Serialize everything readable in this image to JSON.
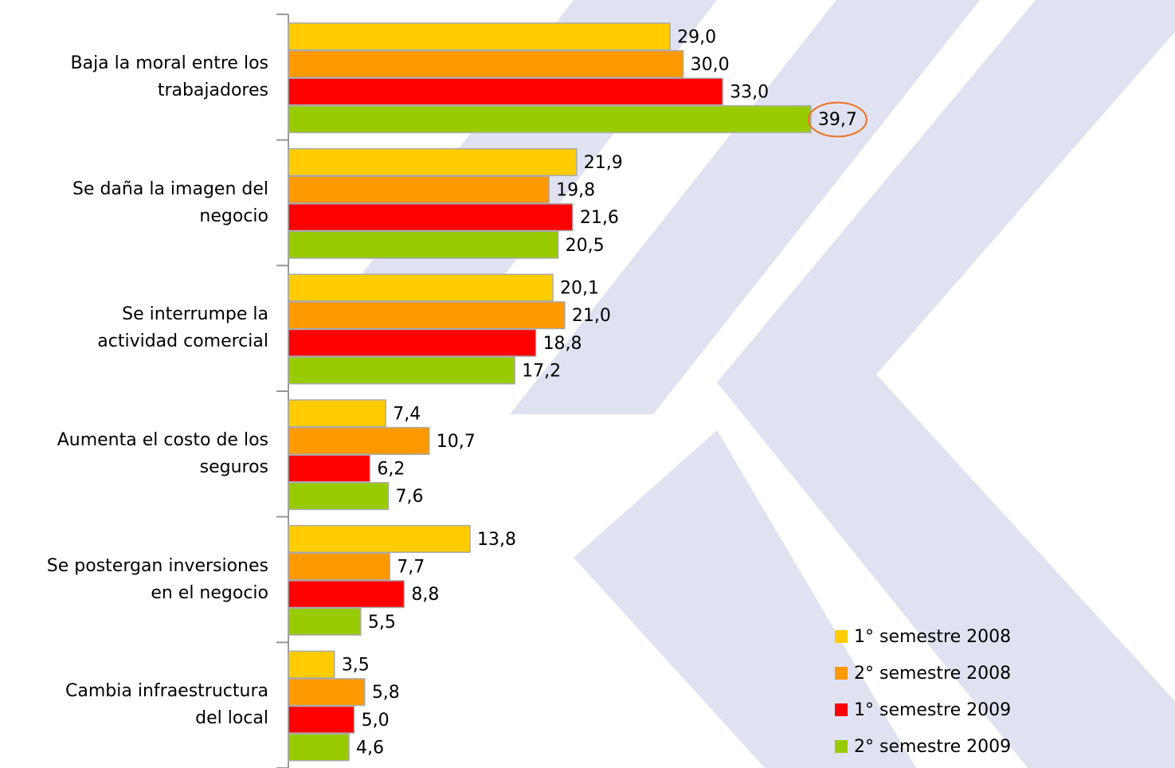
{
  "chart_data": {
    "type": "barh",
    "categories": [
      "Baja la moral entre los\ntrabajadores",
      "Se daña la imagen del\nnegocio",
      "Se interrumpe la\nactividad comercial",
      "Aumenta el costo de los\nseguros",
      "Se postergan inversiones\nen el negocio",
      "Cambia infraestructura\ndel local"
    ],
    "series": [
      {
        "name": "1° semestre 2008",
        "color": "#ffcc00",
        "values": [
          29.0,
          21.9,
          20.1,
          7.4,
          13.8,
          3.5
        ],
        "value_labels": [
          "29,0",
          "21,9",
          "20,1",
          "7,4",
          "13,8",
          "3,5"
        ]
      },
      {
        "name": "2° semestre 2008",
        "color": "#ff9900",
        "values": [
          30.0,
          19.8,
          21.0,
          10.7,
          7.7,
          5.8
        ],
        "value_labels": [
          "30,0",
          "19,8",
          "21,0",
          "10,7",
          "7,7",
          "5,8"
        ]
      },
      {
        "name": "1° semestre 2009",
        "color": "#ff0000",
        "values": [
          33.0,
          21.6,
          18.8,
          6.2,
          8.8,
          5.0
        ],
        "value_labels": [
          "33,0",
          "21,6",
          "18,8",
          "6,2",
          "8,8",
          "5,0"
        ]
      },
      {
        "name": "2° semestre 2009",
        "color": "#99cc00",
        "values": [
          39.7,
          20.5,
          17.2,
          7.6,
          5.5,
          4.6
        ],
        "value_labels": [
          "39,7",
          "20,5",
          "17,2",
          "7,6",
          "5,5",
          "4,6"
        ]
      }
    ],
    "xlim": [
      0,
      50
    ],
    "legend": "lower right"
  }
}
